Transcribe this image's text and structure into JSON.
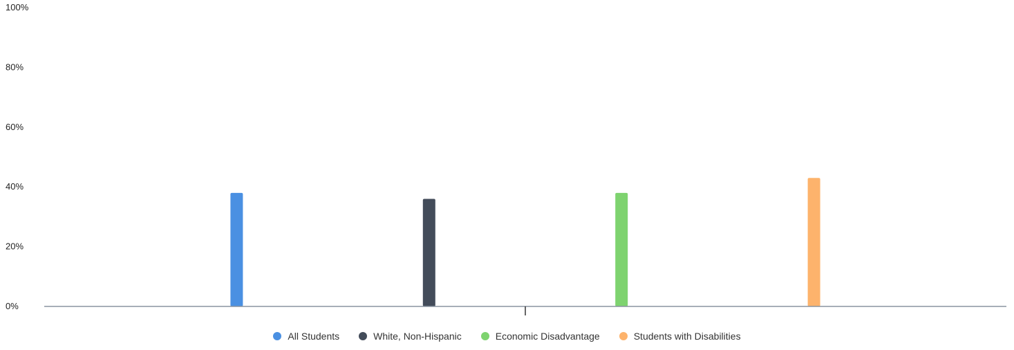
{
  "chart_data": {
    "type": "bar",
    "title": "",
    "xlabel": "",
    "ylabel": "",
    "ylim": [
      0,
      100
    ],
    "y_ticks": [
      "0%",
      "20%",
      "40%",
      "60%",
      "80%",
      "100%"
    ],
    "y_tick_values": [
      0,
      20,
      40,
      60,
      80,
      100
    ],
    "categories": [
      ""
    ],
    "series": [
      {
        "name": "All Students",
        "values": [
          38
        ],
        "color": "#4a90e2"
      },
      {
        "name": "White, Non-Hispanic",
        "values": [
          36
        ],
        "color": "#434c5a"
      },
      {
        "name": "Economic Disadvantage",
        "values": [
          38
        ],
        "color": "#7ed36f"
      },
      {
        "name": "Students with Disabilities",
        "values": [
          43
        ],
        "color": "#fdb36c"
      }
    ],
    "grid": false,
    "legend_position": "bottom"
  }
}
